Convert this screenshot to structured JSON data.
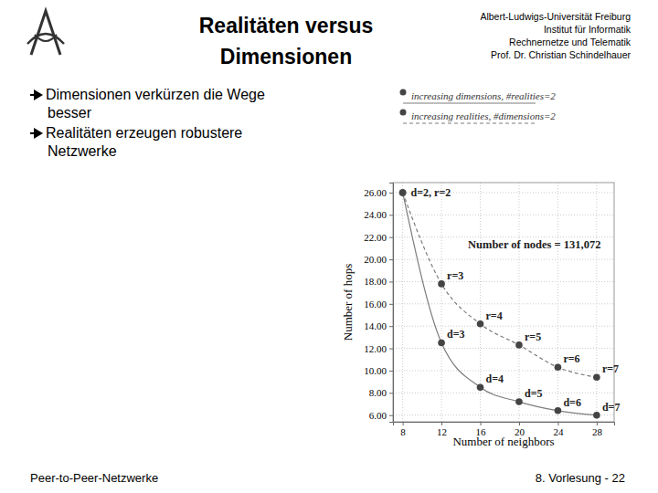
{
  "header": {
    "title": [
      "Realitäten versus",
      "Dimensionen"
    ],
    "institution": [
      "Albert-Ludwigs-Universität Freiburg",
      "Institut für Informatik",
      "Rechnernetze und Telematik",
      "Prof. Dr. Christian Schindelhauer"
    ]
  },
  "bullets": [
    [
      "Dimensionen verkürzen die Wege",
      "besser"
    ],
    [
      "Realitäten erzeugen robustere",
      "Netzwerke"
    ]
  ],
  "footer": {
    "left": "Peer-to-Peer-Netzwerke",
    "right": "8. Vorlesung - 22"
  },
  "chart_data": {
    "type": "line",
    "x": [
      8,
      12,
      16,
      20,
      24,
      28
    ],
    "series": [
      {
        "name": "increasing dimensions, #realities=2",
        "color": "#444444",
        "line_style": "solid",
        "marker": "circle",
        "values": [
          26,
          12.5,
          8.5,
          7.2,
          6.4,
          6.0
        ],
        "labels": [
          "d=2, r=2",
          "d=3",
          "d=4",
          "d=5",
          "d=6",
          "d=7"
        ]
      },
      {
        "name": "increasing realities, #dimensions=2",
        "color": "#444444",
        "line_style": "dashed",
        "marker": "circle",
        "values": [
          26,
          17.8,
          14.2,
          12.3,
          10.3,
          9.4
        ],
        "labels": [
          null,
          "r=3",
          "r=4",
          "r=5",
          "r=6",
          "r=7"
        ]
      }
    ],
    "xlim": [
      7,
      29.8
    ],
    "ylim": [
      5.4,
      26.9
    ],
    "xticks": [
      8,
      12,
      16,
      20,
      24,
      28
    ],
    "yticks": [
      {
        "value": 6,
        "label": "6.00"
      },
      {
        "value": 8,
        "label": "8.00"
      },
      {
        "value": 10,
        "label": "10.00"
      },
      {
        "value": 12,
        "label": "12.00"
      },
      {
        "value": 14,
        "label": "14.00"
      },
      {
        "value": 16,
        "label": "16.00"
      },
      {
        "value": 18,
        "label": "18.00"
      },
      {
        "value": 20,
        "label": "20.00"
      },
      {
        "value": 22,
        "label": "22.00"
      },
      {
        "value": 24,
        "label": "24.00"
      },
      {
        "value": 26,
        "label": "26.00"
      }
    ],
    "x_label": "Number of neighbors",
    "y_label": "Number of hops",
    "annotation": "Number of nodes = 131,072",
    "grid": true,
    "legend": "top"
  }
}
